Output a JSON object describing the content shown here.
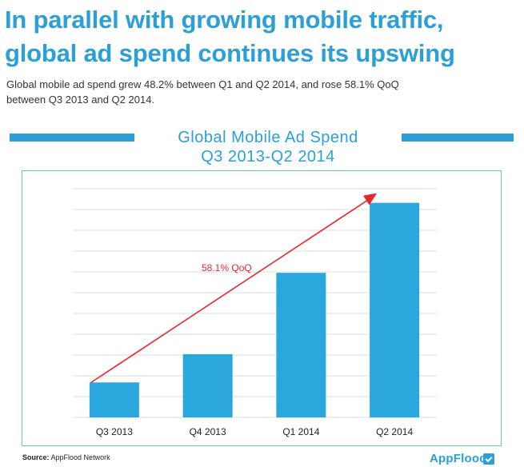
{
  "headline": {
    "line1": "In parallel with growing mobile traffic,",
    "line2": "global ad spend continues its upswing"
  },
  "subhead": {
    "line1": "Global mobile ad spend grew 48.2% between Q1 and Q2 2014, and rose 58.1% QoQ",
    "line2": "between Q3 2013 and Q2 2014."
  },
  "chart_data": {
    "type": "bar",
    "title": "Global Mobile Ad Spend",
    "subtitle": "Q3 2013-Q2 2014",
    "categories": [
      "Q3 2013",
      "Q4 2013",
      "Q1 2014",
      "Q2 2014"
    ],
    "values": [
      5.2,
      9.4,
      21.5,
      31.9
    ],
    "ylim": [
      0,
      34
    ],
    "grid": true,
    "annotation": {
      "text": "58.1% QoQ",
      "color": "#e8262d"
    },
    "bar_color": "#2aa7dc"
  },
  "footer": {
    "source_label": "Source:",
    "source_text": "AppFlood Network",
    "brand": "AppFlood",
    "brand_icon": "appflood-logo-icon"
  },
  "colors": {
    "accent": "#2a9fd8",
    "arrow": "#e8262d",
    "grid": "#dddddd"
  }
}
